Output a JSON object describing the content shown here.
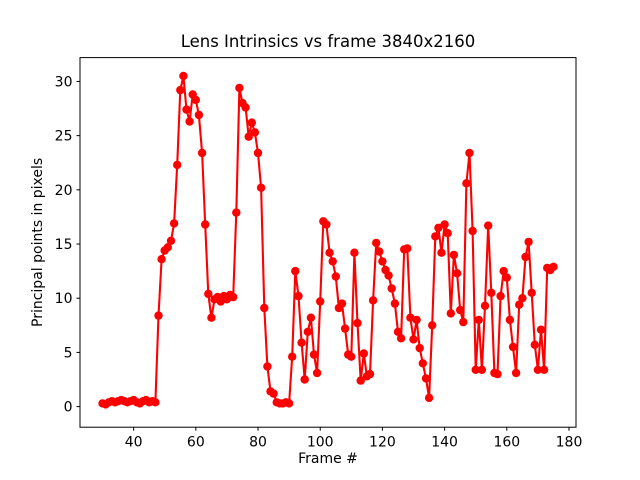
{
  "figure": {
    "title": "Lens Intrinsics vs frame 3840x2160",
    "xlabel": "Frame #",
    "ylabel": "Principal points in pixels"
  },
  "chart_data": {
    "type": "line",
    "title": "Lens Intrinsics vs frame 3840x2160",
    "xlabel": "Frame #",
    "ylabel": "Principal points in pixels",
    "legend": null,
    "grid": false,
    "line_color": "#ff0000",
    "marker": "circle",
    "xlim": [
      22.75,
      182.25
    ],
    "ylim": [
      -1.9,
      32.2
    ],
    "xticks": [
      40,
      60,
      80,
      100,
      120,
      140,
      160,
      180
    ],
    "yticks": [
      0,
      5,
      10,
      15,
      20,
      25,
      30
    ],
    "x": [
      30,
      31,
      32,
      33,
      34,
      35,
      36,
      37,
      38,
      39,
      40,
      41,
      42,
      43,
      44,
      45,
      46,
      47,
      48,
      49,
      50,
      51,
      52,
      53,
      54,
      55,
      56,
      57,
      58,
      59,
      60,
      61,
      62,
      63,
      64,
      65,
      66,
      67,
      68,
      69,
      70,
      71,
      72,
      73,
      74,
      75,
      76,
      77,
      78,
      79,
      80,
      81,
      82,
      83,
      84,
      85,
      86,
      87,
      88,
      89,
      90,
      91,
      92,
      93,
      94,
      95,
      96,
      97,
      98,
      99,
      100,
      101,
      102,
      103,
      104,
      105,
      106,
      107,
      108,
      109,
      110,
      111,
      112,
      113,
      114,
      115,
      116,
      117,
      118,
      119,
      120,
      121,
      122,
      123,
      124,
      125,
      126,
      127,
      128,
      129,
      130,
      131,
      132,
      133,
      134,
      135,
      136,
      137,
      138,
      139,
      140,
      141,
      142,
      143,
      144,
      145,
      146,
      147,
      148,
      149,
      150,
      151,
      152,
      153,
      154,
      155,
      156,
      157,
      158,
      159,
      160,
      161,
      162,
      163,
      164,
      165,
      166,
      167,
      168,
      169,
      170,
      171,
      172,
      173,
      174,
      175
    ],
    "y": [
      0.3,
      0.2,
      0.4,
      0.5,
      0.4,
      0.5,
      0.6,
      0.5,
      0.4,
      0.5,
      0.6,
      0.4,
      0.3,
      0.5,
      0.6,
      0.4,
      0.5,
      0.4,
      8.4,
      13.6,
      14.4,
      14.7,
      15.3,
      16.9,
      22.3,
      29.2,
      30.5,
      27.4,
      26.3,
      28.8,
      28.3,
      26.9,
      23.4,
      16.8,
      10.4,
      8.2,
      9.9,
      10.1,
      9.7,
      10.2,
      9.9,
      10.3,
      10.1,
      17.9,
      29.4,
      28.0,
      27.6,
      24.9,
      26.2,
      25.3,
      23.4,
      20.2,
      9.1,
      3.7,
      1.4,
      1.2,
      0.4,
      0.3,
      0.3,
      0.4,
      0.3,
      4.6,
      12.5,
      10.2,
      5.9,
      2.5,
      6.9,
      8.2,
      4.8,
      3.1,
      9.7,
      17.1,
      16.8,
      14.2,
      13.4,
      12.0,
      9.1,
      9.5,
      7.2,
      4.8,
      4.6,
      14.2,
      7.7,
      2.4,
      4.9,
      2.8,
      3.0,
      9.8,
      15.1,
      14.3,
      13.4,
      12.6,
      12.1,
      10.9,
      9.5,
      6.9,
      6.3,
      14.5,
      14.6,
      8.2,
      6.2,
      8.0,
      5.4,
      4.0,
      2.6,
      0.8,
      7.5,
      15.7,
      16.5,
      14.2,
      16.8,
      16.0,
      8.6,
      14.0,
      12.3,
      8.9,
      7.8,
      20.6,
      23.4,
      16.2,
      3.4,
      8.0,
      3.4,
      9.3,
      16.7,
      10.5,
      3.1,
      3.0,
      10.2,
      12.5,
      11.9,
      8.0,
      5.5,
      3.1,
      9.4,
      10.0,
      13.8,
      15.2,
      10.5,
      5.7,
      3.4,
      7.1,
      3.4,
      12.8,
      12.6,
      12.9
    ]
  }
}
